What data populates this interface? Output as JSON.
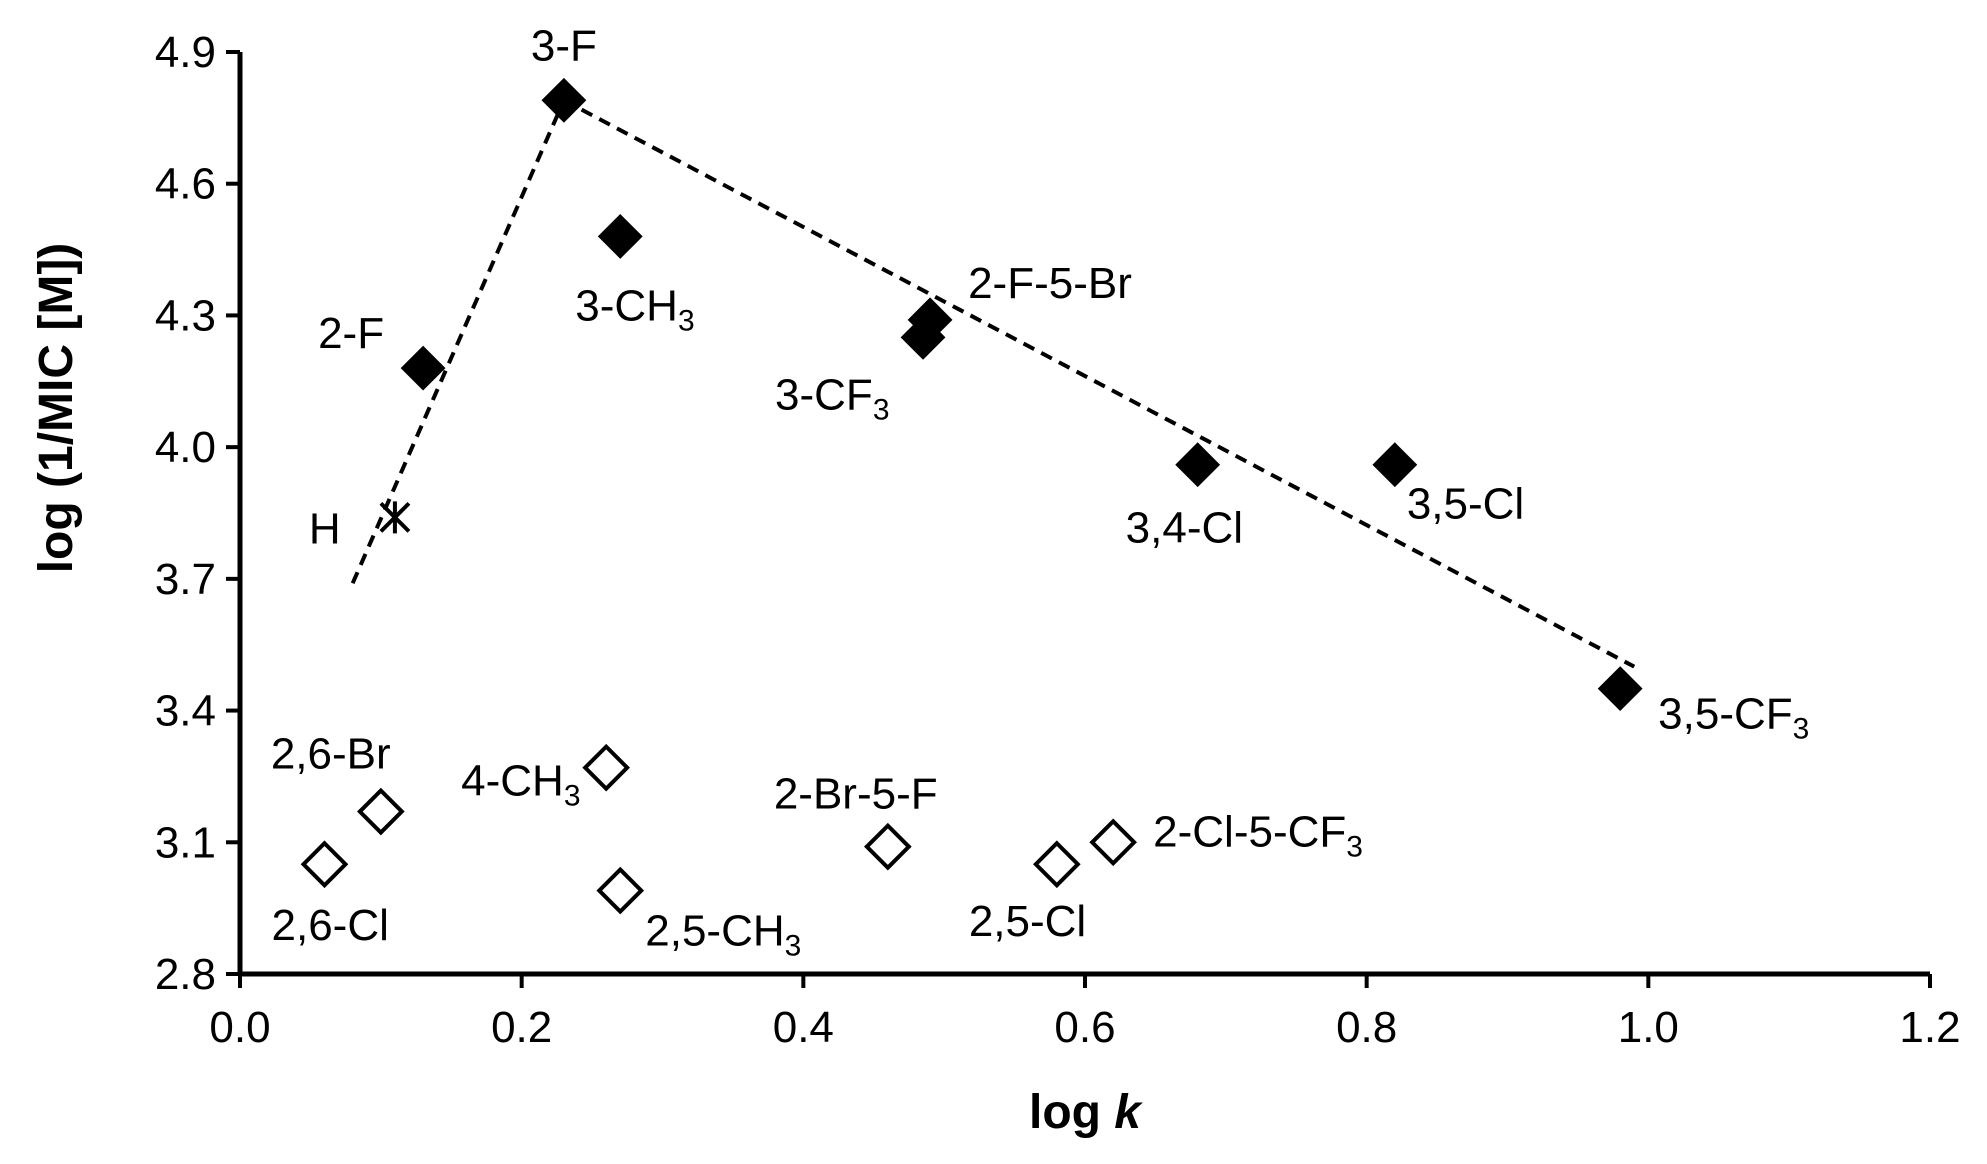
{
  "chart_data": {
    "type": "scatter",
    "xlabel": "log k",
    "xlabel_main": "log ",
    "xlabel_italic": "k",
    "ylabel": "log (1/MIC [M])",
    "xlim": [
      0.0,
      1.2
    ],
    "ylim": [
      2.8,
      4.9
    ],
    "x_ticks": [
      "0.0",
      "0.2",
      "0.4",
      "0.6",
      "0.8",
      "1.0",
      "1.2"
    ],
    "y_ticks": [
      "2.8",
      "3.1",
      "3.4",
      "3.7",
      "4.0",
      "4.3",
      "4.6",
      "4.9"
    ],
    "grid": false,
    "legend": "none",
    "colors": {
      "axis": "#000000",
      "filled_marker": "#000000",
      "open_marker": "#ffffff",
      "trendline": "#000000"
    },
    "series": [
      {
        "marker": "filled-diamond",
        "points": [
          {
            "label": "3-F",
            "label_sub": "",
            "x": 0.23,
            "y": 4.79
          },
          {
            "label": "3-CH",
            "label_sub": "3",
            "x": 0.27,
            "y": 4.48
          },
          {
            "label": "2-F",
            "label_sub": "",
            "x": 0.13,
            "y": 4.18
          },
          {
            "label": "2-F-5-Br",
            "label_sub": "",
            "x": 0.49,
            "y": 4.29
          },
          {
            "label": "3-CF",
            "label_sub": "3",
            "x": 0.485,
            "y": 4.25
          },
          {
            "label": "3,4-Cl",
            "label_sub": "",
            "x": 0.68,
            "y": 3.96
          },
          {
            "label": "3,5-Cl",
            "label_sub": "",
            "x": 0.82,
            "y": 3.96
          },
          {
            "label": "3,5-CF",
            "label_sub": "3",
            "x": 0.98,
            "y": 3.45
          }
        ]
      },
      {
        "marker": "cross",
        "points": [
          {
            "label": "H",
            "label_sub": "",
            "x": 0.11,
            "y": 3.84
          }
        ]
      },
      {
        "marker": "open-diamond",
        "points": [
          {
            "label": "2,6-Br",
            "label_sub": "",
            "x": 0.1,
            "y": 3.17
          },
          {
            "label": "2,6-Cl",
            "label_sub": "",
            "x": 0.06,
            "y": 3.05
          },
          {
            "label": "4-CH",
            "label_sub": "3",
            "x": 0.26,
            "y": 3.27
          },
          {
            "label": "2,5-CH",
            "label_sub": "3",
            "x": 0.27,
            "y": 2.99
          },
          {
            "label": "2-Br-5-F",
            "label_sub": "",
            "x": 0.46,
            "y": 3.09
          },
          {
            "label": "2,5-Cl",
            "label_sub": "",
            "x": 0.58,
            "y": 3.05
          },
          {
            "label": "2-Cl-5-CF",
            "label_sub": "3",
            "x": 0.62,
            "y": 3.1
          }
        ]
      }
    ],
    "trendlines": [
      {
        "style": "dashed",
        "points": [
          [
            0.08,
            3.69
          ],
          [
            0.23,
            4.79
          ]
        ]
      },
      {
        "style": "dashed",
        "points": [
          [
            0.23,
            4.79
          ],
          [
            0.99,
            3.5
          ]
        ]
      }
    ]
  }
}
